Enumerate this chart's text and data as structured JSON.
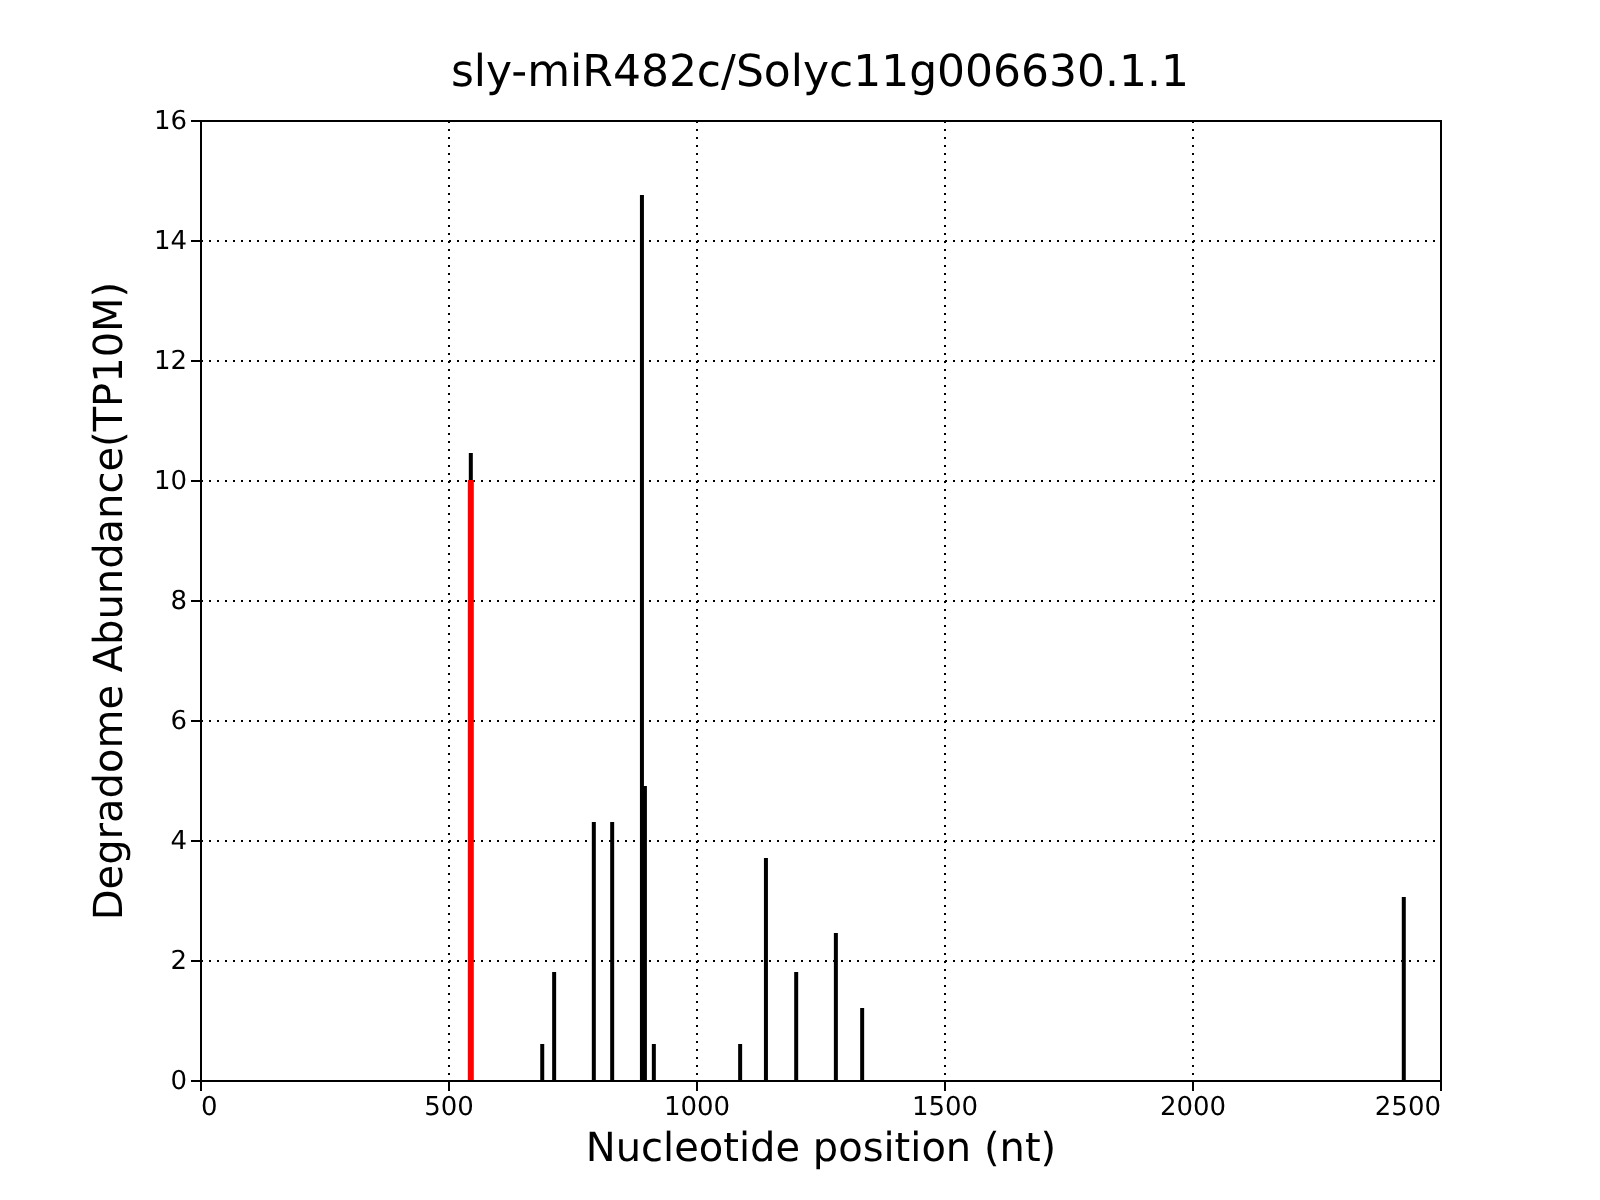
{
  "chart_data": {
    "type": "bar",
    "title": "sly-miR482c/Solyc11g006630.1.1",
    "xlabel": "Nucleotide position (nt)",
    "ylabel": "Degradome Abundance(TP10M)",
    "series": [
      {
        "color": "#000000",
        "x": [
          546,
          690,
          714,
          794,
          831,
          891,
          897,
          915,
          1089,
          1141,
          1202,
          1282,
          1335,
          2427
        ],
        "values": [
          10.45,
          0.6,
          1.8,
          4.3,
          4.3,
          14.75,
          4.9,
          0.6,
          0.6,
          3.7,
          1.8,
          2.45,
          1.2,
          3.05
        ]
      },
      {
        "color": "#ff0000",
        "x": [
          546
        ],
        "values": [
          10.0
        ]
      }
    ],
    "xlim": [
      0,
      2500
    ],
    "xticks": [
      0,
      500,
      1000,
      1500,
      2000,
      2500
    ],
    "ylim": [
      0,
      16
    ],
    "yticks": [
      0,
      2,
      4,
      6,
      8,
      10,
      12,
      14,
      16
    ],
    "grid": true
  }
}
